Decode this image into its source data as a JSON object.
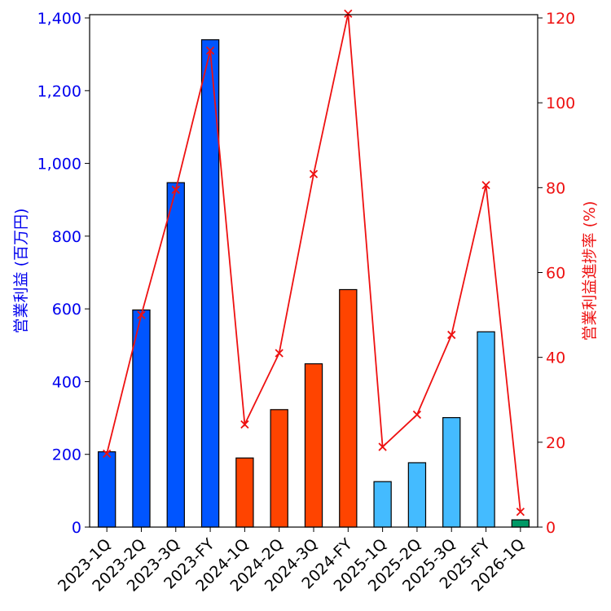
{
  "chart_data": {
    "type": "bar+line",
    "categories": [
      "2023-1Q",
      "2023-2Q",
      "2023-3Q",
      "2023-FY",
      "2024-1Q",
      "2024-2Q",
      "2024-3Q",
      "2024-FY",
      "2025-1Q",
      "2025-2Q",
      "2025-3Q",
      "2025-FY",
      "2026-1Q"
    ],
    "bars": {
      "name": "営業利益",
      "values": [
        207,
        597,
        947,
        1340,
        190,
        323,
        449,
        653,
        125,
        177,
        301,
        537,
        20
      ],
      "colors": [
        "#0055ff",
        "#0055ff",
        "#0055ff",
        "#0055ff",
        "#ff4400",
        "#ff4400",
        "#ff4400",
        "#ff4400",
        "#44bbff",
        "#44bbff",
        "#44bbff",
        "#44bbff",
        "#009966"
      ]
    },
    "line": {
      "name": "営業利益進捗率",
      "values": [
        17.3,
        50.0,
        79.5,
        112.3,
        24.2,
        41.0,
        83.2,
        121.0,
        18.9,
        26.5,
        45.3,
        80.6,
        3.6
      ],
      "color": "#ee1111"
    },
    "y_left": {
      "label": "営業利益 (百万円)",
      "range": [
        0,
        1400
      ],
      "ticks": [
        0,
        200,
        400,
        600,
        800,
        1000,
        1200,
        1400
      ],
      "tick_labels": [
        "0",
        "200",
        "400",
        "600",
        "800",
        "1,000",
        "1,200",
        "1,400"
      ],
      "color": "#0000ee"
    },
    "y_right": {
      "label": "営業利益進捗率 (%)",
      "range": [
        0,
        120
      ],
      "ticks": [
        0,
        20,
        40,
        60,
        80,
        100,
        120
      ],
      "tick_labels": [
        "0",
        "20",
        "40",
        "60",
        "80",
        "100",
        "120"
      ],
      "color": "#ee1111"
    },
    "grid": false,
    "legend": "none"
  }
}
